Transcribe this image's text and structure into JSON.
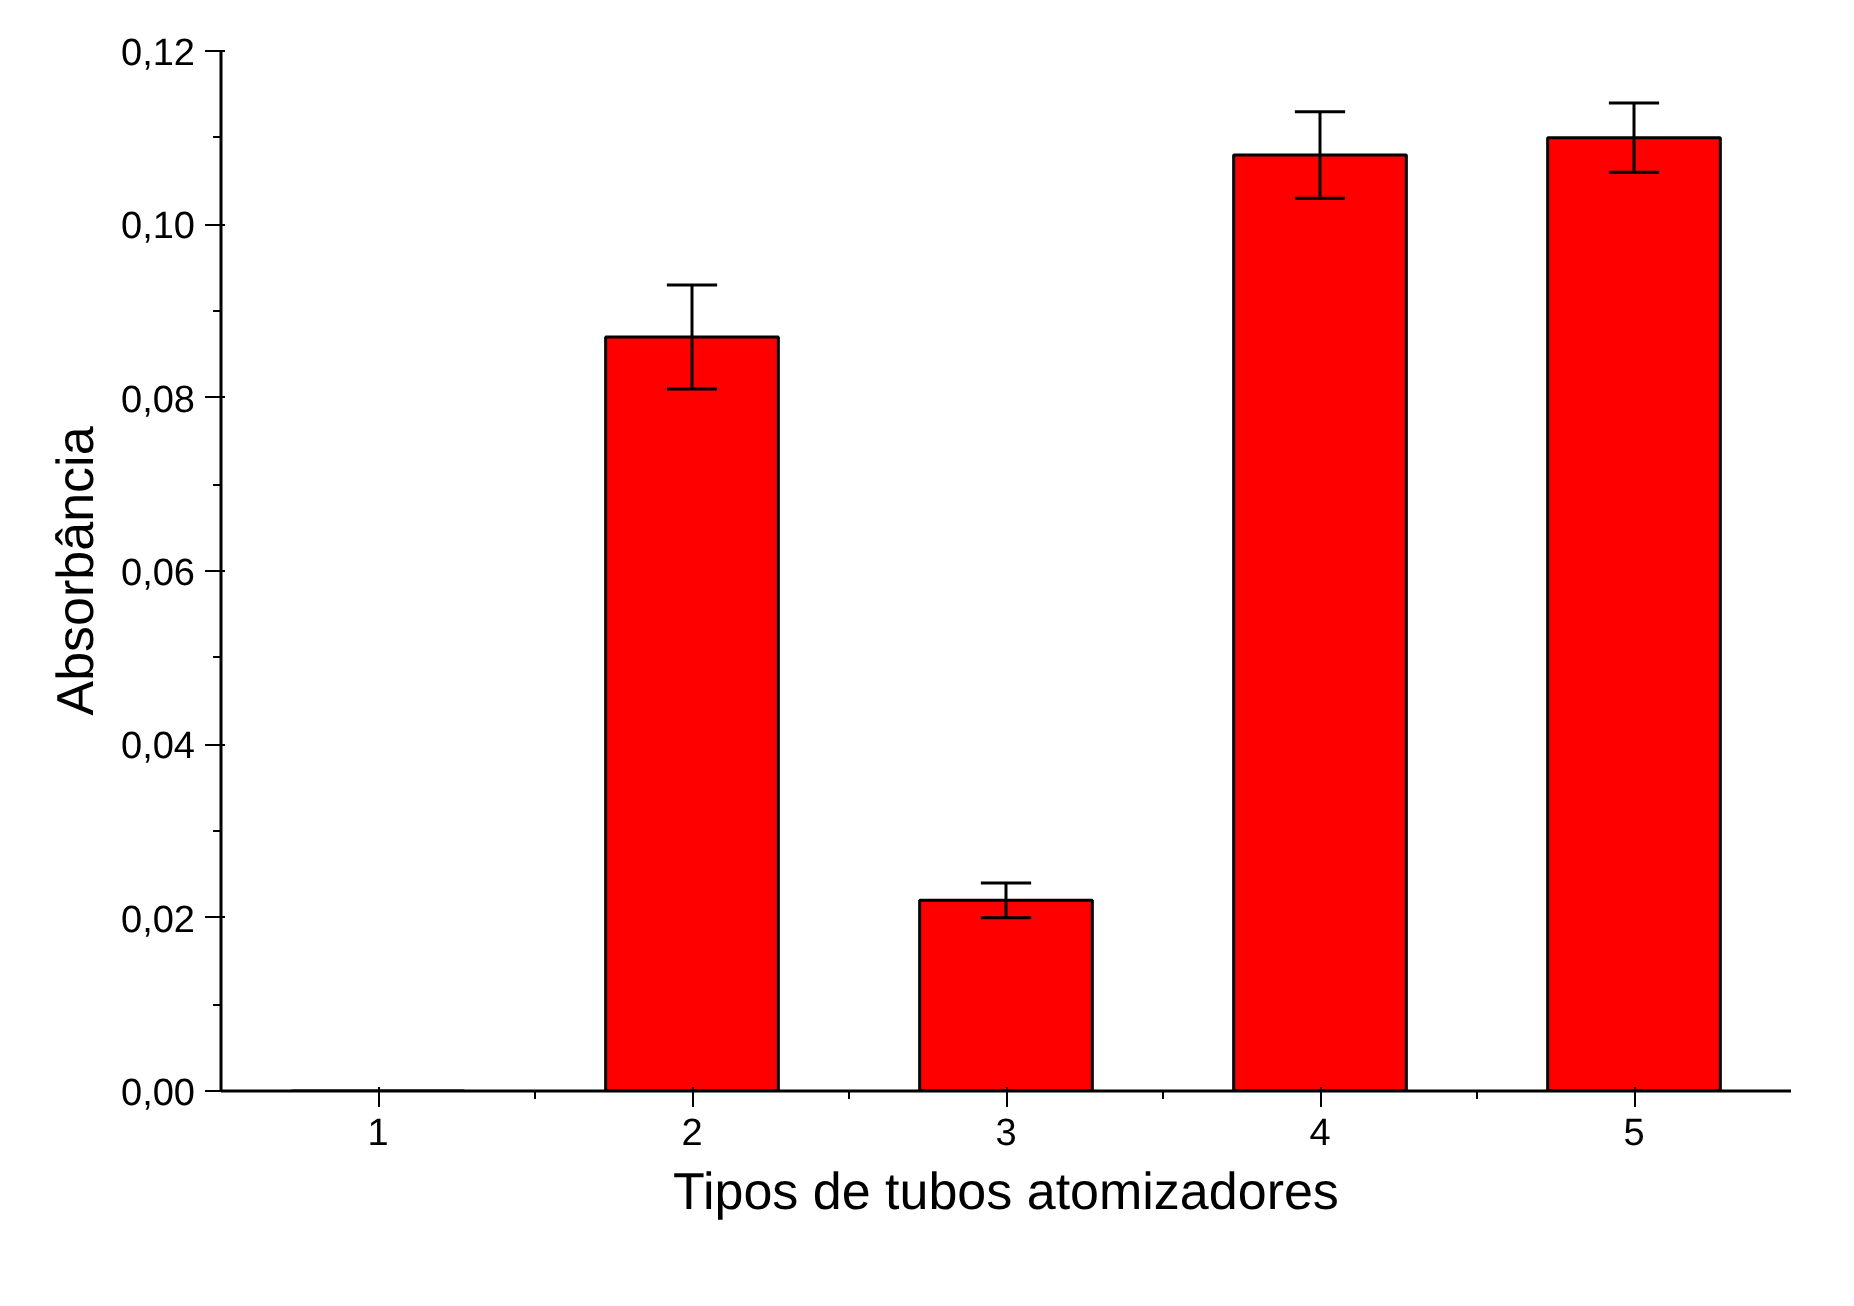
{
  "chart_data": {
    "type": "bar",
    "xlabel": "Tipos de tubos atomizadores",
    "ylabel": "Absorbância",
    "categories": [
      "1",
      "2",
      "3",
      "4",
      "5"
    ],
    "values": [
      0,
      0.087,
      0.022,
      0.108,
      0.11
    ],
    "errors": [
      null,
      [
        0.081,
        0.093
      ],
      [
        0.02,
        0.024
      ],
      [
        0.103,
        0.113
      ],
      [
        0.106,
        0.114
      ]
    ],
    "color": "#ff0000",
    "ylim": [
      0,
      0.12
    ],
    "yticks": [
      {
        "value": 0,
        "label": "0,00"
      },
      {
        "value": 0.02,
        "label": "0,02"
      },
      {
        "value": 0.04,
        "label": "0,04"
      },
      {
        "value": 0.06,
        "label": "0,06"
      },
      {
        "value": 0.08,
        "label": "0,08"
      },
      {
        "value": 0.1,
        "label": "0,10"
      },
      {
        "value": 0.12,
        "label": "0,12"
      }
    ],
    "grid": false
  }
}
